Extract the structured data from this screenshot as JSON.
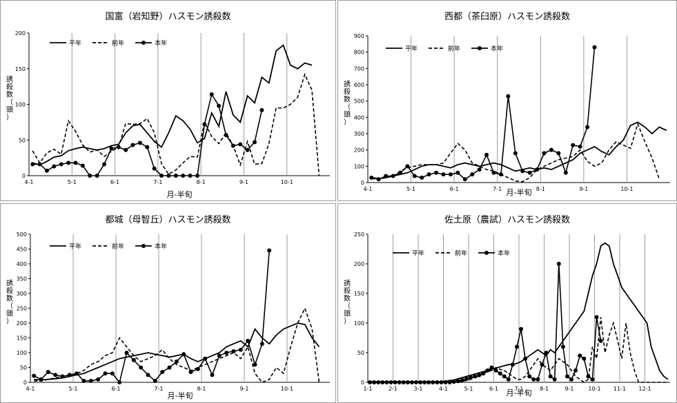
{
  "xlabel_common": "月-半旬",
  "ylabel_common": "誘殺数（頭）",
  "legend": {
    "avg": "平年",
    "prev": "前年",
    "curr": "本年"
  },
  "colors": {
    "line": "#000000",
    "border": "#9a9a9a",
    "grid": "#9a9a9a"
  },
  "chart_data": [
    {
      "type": "line",
      "title": "国富（岩知野）ハスモン誘殺数",
      "ylim": [
        0,
        200
      ],
      "yticks": [
        0,
        50,
        100,
        150,
        200
      ],
      "xticklabels": [
        "4-1",
        "5-1",
        "6-1",
        "7-1",
        "8-1",
        "9-1",
        "10-1"
      ],
      "series": [
        {
          "name": "平年",
          "style": "solid",
          "values": [
            18,
            15,
            20,
            26,
            28,
            35,
            38,
            40,
            38,
            36,
            38,
            42,
            44,
            60,
            70,
            72,
            60,
            48,
            40,
            60,
            84,
            77,
            65,
            46,
            52,
            88,
            69,
            118,
            85,
            75,
            112,
            102,
            138,
            130,
            175,
            183,
            155,
            150,
            158,
            155
          ]
        },
        {
          "name": "前年",
          "style": "dashed",
          "values": [
            35,
            18,
            32,
            37,
            30,
            77,
            62,
            43,
            33,
            36,
            27,
            34,
            40,
            73,
            72,
            73,
            80,
            60,
            17,
            2,
            8,
            18,
            27,
            26,
            75,
            55,
            45,
            60,
            42,
            15,
            48,
            16,
            17,
            45,
            95,
            95,
            100,
            110,
            142,
            120,
            0
          ]
        },
        {
          "name": "本年",
          "style": "marker",
          "values": [
            16,
            16,
            7,
            13,
            16,
            18,
            18,
            14,
            0,
            0,
            16,
            38,
            40,
            36,
            43,
            46,
            40,
            10,
            0,
            0,
            0,
            0,
            0,
            0,
            72,
            114,
            98,
            57,
            42,
            44,
            36,
            47,
            92
          ]
        }
      ]
    },
    {
      "type": "line",
      "title": "西都（茶臼原）ハスモン誘殺数",
      "ylim": [
        0,
        900
      ],
      "yticks": [
        0,
        100,
        200,
        300,
        400,
        500,
        600,
        700,
        800,
        900
      ],
      "xticklabels": [
        "4-1",
        "5-1",
        "6-1",
        "7-1",
        "8-1",
        "9-1",
        "10-1"
      ],
      "series": [
        {
          "name": "平年",
          "style": "solid",
          "values": [
            30,
            25,
            30,
            40,
            50,
            60,
            80,
            100,
            110,
            110,
            100,
            90,
            110,
            120,
            110,
            100,
            110,
            120,
            110,
            90,
            70,
            80,
            90,
            80,
            90,
            80,
            100,
            120,
            140,
            180,
            200,
            220,
            190,
            170,
            220,
            260,
            350,
            370,
            340,
            300,
            340,
            320
          ]
        },
        {
          "name": "前年",
          "style": "dashed",
          "values": [
            25,
            20,
            30,
            40,
            70,
            90,
            100,
            110,
            110,
            110,
            120,
            180,
            240,
            200,
            120,
            100,
            80,
            70,
            50,
            30,
            10,
            5,
            30,
            80,
            100,
            120,
            140,
            150,
            160,
            200,
            130,
            100,
            120,
            200,
            250,
            230,
            210,
            360,
            250,
            150,
            20
          ]
        },
        {
          "name": "本年",
          "style": "marker",
          "values": [
            30,
            20,
            40,
            40,
            60,
            100,
            40,
            30,
            50,
            60,
            50,
            50,
            60,
            20,
            50,
            80,
            170,
            60,
            50,
            530,
            180,
            70,
            60,
            80,
            180,
            200,
            180,
            60,
            230,
            220,
            340,
            830
          ]
        }
      ]
    },
    {
      "type": "line",
      "title": "都城（母智丘）ハスモン誘殺数",
      "ylim": [
        0,
        500
      ],
      "yticks": [
        0,
        50,
        100,
        150,
        200,
        250,
        300,
        350,
        400,
        450,
        500
      ],
      "xticklabels": [
        "4-1",
        "5-1",
        "6-1",
        "7-1",
        "8-1",
        "9-1",
        "10-1"
      ],
      "series": [
        {
          "name": "平年",
          "style": "solid",
          "values": [
            10,
            8,
            10,
            12,
            15,
            20,
            25,
            30,
            40,
            50,
            60,
            70,
            80,
            85,
            90,
            95,
            100,
            95,
            90,
            85,
            90,
            95,
            80,
            70,
            80,
            90,
            100,
            120,
            130,
            140,
            120,
            180,
            150,
            130,
            160,
            180,
            190,
            200,
            195,
            150,
            120
          ]
        },
        {
          "name": "前年",
          "style": "dashed",
          "values": [
            5,
            5,
            10,
            15,
            20,
            25,
            30,
            40,
            60,
            70,
            90,
            100,
            150,
            120,
            90,
            70,
            80,
            90,
            110,
            80,
            60,
            50,
            40,
            50,
            60,
            70,
            80,
            90,
            100,
            80,
            120,
            30,
            0,
            10,
            50,
            30,
            120,
            200,
            250,
            180,
            0
          ]
        },
        {
          "name": "本年",
          "style": "marker",
          "values": [
            22,
            10,
            35,
            25,
            20,
            25,
            30,
            5,
            5,
            10,
            30,
            30,
            0,
            100,
            75,
            50,
            25,
            5,
            35,
            50,
            70,
            95,
            35,
            45,
            80,
            25,
            90,
            100,
            105,
            110,
            140,
            60,
            130,
            445
          ]
        }
      ]
    },
    {
      "type": "line",
      "title": "佐土原（農試）ハスモン誘殺数",
      "ylim": [
        0,
        250
      ],
      "yticks": [
        0,
        50,
        100,
        150,
        200,
        250
      ],
      "xticklabels": [
        "1-1",
        "2-1",
        "3-1",
        "4-1",
        "5-1",
        "6-1",
        "7-1",
        "8-1",
        "9-1",
        "10-1",
        "11-1",
        "12-1"
      ],
      "series": [
        {
          "name": "平年",
          "style": "solid",
          "values": [
            1,
            1,
            1,
            1,
            1,
            1,
            1,
            1,
            1,
            1,
            1,
            1,
            1,
            1,
            1,
            1,
            1,
            1,
            2,
            3,
            4,
            6,
            8,
            10,
            12,
            14,
            16,
            18,
            20,
            22,
            24,
            26,
            28,
            30,
            30,
            32,
            35,
            40,
            45,
            50,
            55,
            50,
            45,
            55,
            50,
            60,
            70,
            80,
            90,
            100,
            110,
            120,
            150,
            180,
            200,
            230,
            235,
            230,
            200,
            180,
            160,
            150,
            140,
            130,
            120,
            110,
            100,
            60,
            40,
            20,
            10,
            5
          ]
        },
        {
          "name": "前年",
          "style": "dashed",
          "values": [
            0,
            0,
            0,
            0,
            0,
            0,
            0,
            0,
            0,
            0,
            0,
            0,
            0,
            0,
            0,
            0,
            0,
            0,
            0,
            0,
            0,
            1,
            2,
            3,
            5,
            8,
            10,
            15,
            18,
            20,
            25,
            22,
            20,
            15,
            10,
            5,
            5,
            10,
            20,
            30,
            40,
            30,
            25,
            20,
            30,
            40,
            35,
            30,
            20,
            10,
            5,
            0,
            5,
            60,
            40,
            110,
            50,
            80,
            100,
            70,
            40,
            100,
            50,
            20,
            0,
            0,
            0,
            0,
            0,
            0,
            0,
            0
          ]
        },
        {
          "name": "本年",
          "style": "marker",
          "values": [
            0,
            0,
            0,
            0,
            0,
            0,
            0,
            0,
            0,
            0,
            0,
            0,
            0,
            0,
            0,
            0,
            0,
            0,
            0,
            0,
            1,
            2,
            4,
            6,
            8,
            10,
            12,
            15,
            20,
            25,
            20,
            15,
            10,
            5,
            30,
            60,
            90,
            40,
            10,
            5,
            5,
            30,
            50,
            10,
            5,
            200,
            60,
            10,
            5,
            20,
            45,
            40,
            10,
            5,
            110,
            70
          ]
        }
      ]
    }
  ]
}
